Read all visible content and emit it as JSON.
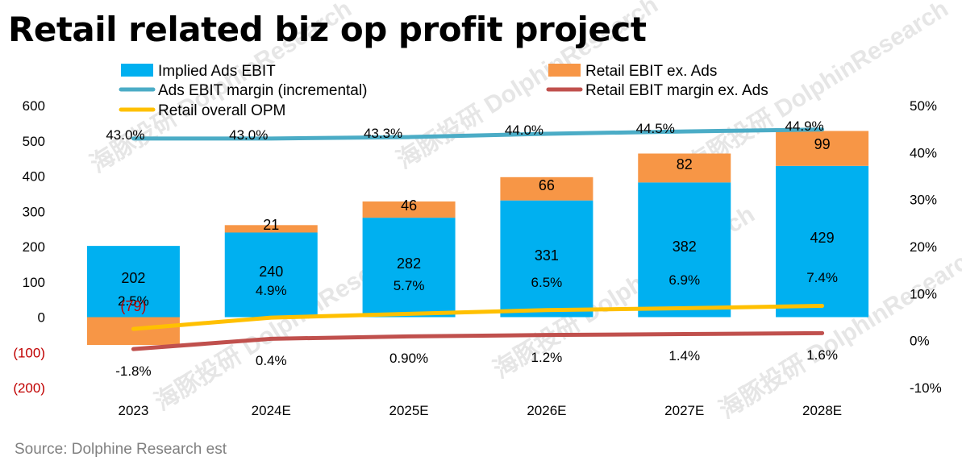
{
  "title": "Retail related biz op profit project",
  "source": "Source:  Dolphine Research est",
  "watermark": "海豚投研 DolphinResearch",
  "colors": {
    "ads_bar": "#00b0f0",
    "retail_bar": "#f79646",
    "ads_margin_line": "#4bacc6",
    "retail_margin_line": "#c0504d",
    "overall_opm_line": "#ffc000",
    "negative_text": "#c00000"
  },
  "chart_data": {
    "type": "bar",
    "categories": [
      "2023",
      "2024E",
      "2025E",
      "2026E",
      "2027E",
      "2028E"
    ],
    "series": [
      {
        "name": "Implied Ads EBIT",
        "kind": "bar",
        "axis": "left",
        "values": [
          202,
          240,
          282,
          331,
          382,
          429
        ],
        "labels": [
          "202",
          "240",
          "282",
          "331",
          "382",
          "429"
        ]
      },
      {
        "name": "Retail EBIT ex. Ads",
        "kind": "bar",
        "axis": "left",
        "values": [
          -79,
          21,
          46,
          66,
          82,
          99
        ],
        "labels": [
          "(79)",
          "21",
          "46",
          "66",
          "82",
          "99"
        ]
      },
      {
        "name": "Ads EBIT margin (incremental)",
        "kind": "line",
        "axis": "right",
        "values": [
          43.0,
          43.0,
          43.3,
          44.0,
          44.5,
          44.9
        ],
        "labels": [
          "43.0%",
          "43.0%",
          "43.3%",
          "44.0%",
          "44.5%",
          "44.9%"
        ]
      },
      {
        "name": "Retail EBIT margin ex. Ads",
        "kind": "line",
        "axis": "right",
        "values": [
          -1.8,
          0.4,
          0.9,
          1.2,
          1.4,
          1.6
        ],
        "labels": [
          "-1.8%",
          "0.4%",
          "0.90%",
          "1.2%",
          "1.4%",
          "1.6%"
        ]
      },
      {
        "name": "Retail overall OPM",
        "kind": "line",
        "axis": "right",
        "values": [
          2.5,
          4.9,
          5.7,
          6.5,
          6.9,
          7.4
        ],
        "labels": [
          "2.5%",
          "4.9%",
          "5.7%",
          "6.5%",
          "6.9%",
          "7.4%"
        ]
      }
    ],
    "y_left": {
      "min": -200,
      "max": 600,
      "step": 100,
      "tick_labels": [
        "(200)",
        "(100)",
        "0",
        "100",
        "200",
        "300",
        "400",
        "500",
        "600"
      ]
    },
    "y_right": {
      "min": -10,
      "max": 50,
      "step": 10,
      "tick_labels": [
        "-10%",
        "0%",
        "10%",
        "20%",
        "30%",
        "40%",
        "50%"
      ]
    },
    "stacked": true,
    "grid": false,
    "legend_position": "top"
  }
}
